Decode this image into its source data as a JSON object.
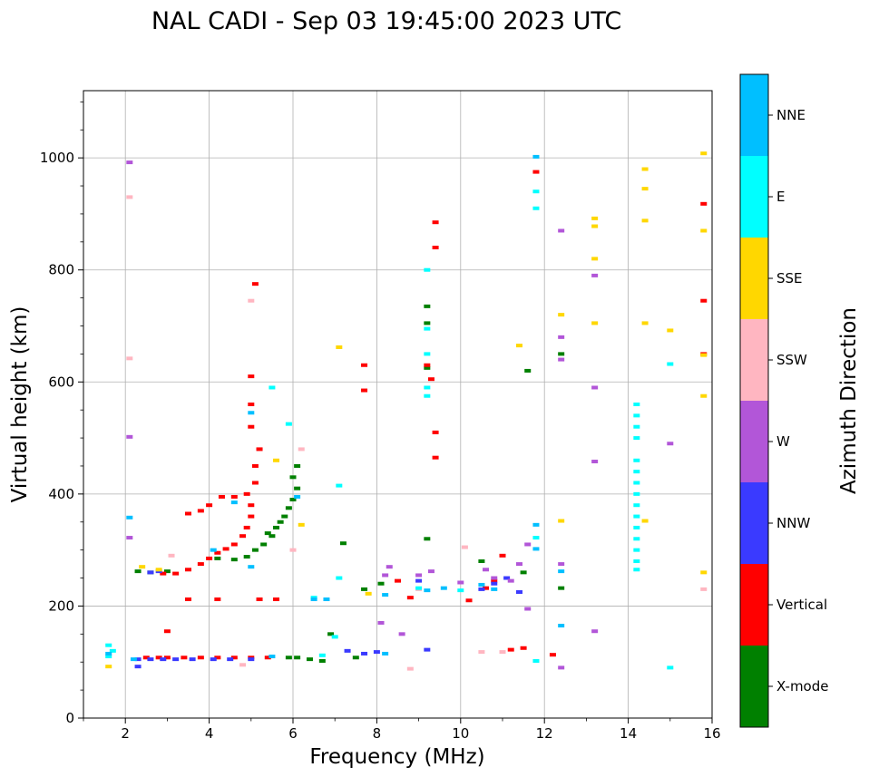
{
  "chart_data": {
    "type": "scatter",
    "title": "NAL CADI - Sep 03 19:45:00 2023 UTC",
    "xlabel": "Frequency (MHz)",
    "ylabel": "Virtual height (km)",
    "xlim": [
      1,
      16
    ],
    "ylim": [
      0,
      1120
    ],
    "xticks": [
      2,
      4,
      6,
      8,
      10,
      12,
      14,
      16
    ],
    "yticks": [
      0,
      200,
      400,
      600,
      800,
      1000
    ],
    "grid": true,
    "colorbar": {
      "label": "Azimuth Direction",
      "categories": [
        {
          "name": "X-mode",
          "color": "#008000"
        },
        {
          "name": "Vertical",
          "color": "#ff0000"
        },
        {
          "name": "NNW",
          "color": "#3a3aff"
        },
        {
          "name": "W",
          "color": "#b256d8"
        },
        {
          "name": "SSW",
          "color": "#ffb6c1"
        },
        {
          "name": "SSE",
          "color": "#ffd700"
        },
        {
          "name": "E",
          "color": "#00ffff"
        },
        {
          "name": "NNE",
          "color": "#00bfff"
        }
      ]
    },
    "series": [
      {
        "name": "X-mode",
        "points": [
          [
            2.3,
            262
          ],
          [
            2.6,
            260
          ],
          [
            3.0,
            262
          ],
          [
            4.2,
            285
          ],
          [
            4.6,
            283
          ],
          [
            4.9,
            288
          ],
          [
            5.1,
            300
          ],
          [
            5.3,
            310
          ],
          [
            5.5,
            325
          ],
          [
            5.6,
            340
          ],
          [
            5.8,
            360
          ],
          [
            5.9,
            375
          ],
          [
            6.0,
            390
          ],
          [
            6.1,
            410
          ],
          [
            6.0,
            430
          ],
          [
            6.1,
            450
          ],
          [
            6.4,
            105
          ],
          [
            6.7,
            102
          ],
          [
            7.5,
            108
          ],
          [
            6.1,
            108
          ],
          [
            5.9,
            108
          ],
          [
            6.9,
            150
          ],
          [
            7.7,
            230
          ],
          [
            8.1,
            240
          ],
          [
            10.5,
            280
          ],
          [
            11.5,
            260
          ],
          [
            12.4,
            650
          ],
          [
            12.4,
            232
          ],
          [
            9.2,
            735
          ],
          [
            9.2,
            705
          ],
          [
            9.2,
            625
          ],
          [
            9.2,
            320
          ],
          [
            11.6,
            620
          ],
          [
            5.4,
            330
          ],
          [
            5.7,
            350
          ],
          [
            7.2,
            312
          ]
        ]
      },
      {
        "name": "Vertical",
        "points": [
          [
            2.9,
            258
          ],
          [
            3.2,
            258
          ],
          [
            3.5,
            265
          ],
          [
            3.8,
            275
          ],
          [
            4.0,
            285
          ],
          [
            4.2,
            295
          ],
          [
            4.4,
            302
          ],
          [
            4.6,
            310
          ],
          [
            4.8,
            325
          ],
          [
            4.9,
            340
          ],
          [
            5.0,
            360
          ],
          [
            5.0,
            380
          ],
          [
            5.1,
            420
          ],
          [
            5.1,
            450
          ],
          [
            5.2,
            480
          ],
          [
            5.0,
            520
          ],
          [
            5.0,
            560
          ],
          [
            5.0,
            610
          ],
          [
            5.1,
            775
          ],
          [
            3.5,
            365
          ],
          [
            3.8,
            370
          ],
          [
            4.0,
            380
          ],
          [
            4.3,
            395
          ],
          [
            4.6,
            395
          ],
          [
            4.9,
            400
          ],
          [
            2.5,
            108
          ],
          [
            2.8,
            108
          ],
          [
            3.0,
            108
          ],
          [
            3.4,
            108
          ],
          [
            3.8,
            108
          ],
          [
            4.2,
            108
          ],
          [
            4.6,
            108
          ],
          [
            5.0,
            108
          ],
          [
            5.4,
            108
          ],
          [
            3.5,
            212
          ],
          [
            4.2,
            212
          ],
          [
            5.2,
            212
          ],
          [
            5.6,
            212
          ],
          [
            7.7,
            630
          ],
          [
            7.7,
            585
          ],
          [
            9.2,
            630
          ],
          [
            9.4,
            885
          ],
          [
            9.4,
            840
          ],
          [
            9.4,
            510
          ],
          [
            9.4,
            465
          ],
          [
            10.6,
            232
          ],
          [
            11.0,
            290
          ],
          [
            10.8,
            245
          ],
          [
            11.2,
            122
          ],
          [
            11.5,
            125
          ],
          [
            11.8,
            975
          ],
          [
            12.2,
            113
          ],
          [
            15.8,
            918
          ],
          [
            15.8,
            745
          ],
          [
            15.8,
            650
          ],
          [
            10.2,
            210
          ],
          [
            3.0,
            155
          ],
          [
            8.5,
            245
          ],
          [
            8.8,
            215
          ],
          [
            9.3,
            605
          ]
        ]
      },
      {
        "name": "NNW",
        "points": [
          [
            2.3,
            105
          ],
          [
            2.6,
            105
          ],
          [
            2.9,
            105
          ],
          [
            3.2,
            105
          ],
          [
            3.6,
            105
          ],
          [
            4.1,
            105
          ],
          [
            4.5,
            105
          ],
          [
            5.0,
            105
          ],
          [
            7.3,
            120
          ],
          [
            7.7,
            115
          ],
          [
            8.0,
            118
          ],
          [
            9.2,
            122
          ],
          [
            10.8,
            240
          ],
          [
            11.1,
            250
          ],
          [
            11.4,
            225
          ],
          [
            10.5,
            230
          ],
          [
            9.0,
            245
          ],
          [
            2.6,
            260
          ],
          [
            2.8,
            262
          ],
          [
            2.3,
            92
          ]
        ]
      },
      {
        "name": "W",
        "points": [
          [
            2.1,
            992
          ],
          [
            2.1,
            322
          ],
          [
            2.1,
            502
          ],
          [
            8.3,
            270
          ],
          [
            8.2,
            255
          ],
          [
            9.0,
            255
          ],
          [
            9.3,
            262
          ],
          [
            10.6,
            265
          ],
          [
            10.8,
            250
          ],
          [
            11.2,
            245
          ],
          [
            11.4,
            275
          ],
          [
            11.6,
            310
          ],
          [
            12.4,
            870
          ],
          [
            12.4,
            680
          ],
          [
            12.4,
            640
          ],
          [
            12.4,
            275
          ],
          [
            12.4,
            90
          ],
          [
            13.2,
            790
          ],
          [
            13.2,
            590
          ],
          [
            13.2,
            458
          ],
          [
            13.2,
            155
          ],
          [
            15.0,
            490
          ],
          [
            11.6,
            195
          ],
          [
            8.6,
            150
          ],
          [
            8.1,
            170
          ],
          [
            10.0,
            242
          ]
        ]
      },
      {
        "name": "SSW",
        "points": [
          [
            2.1,
            930
          ],
          [
            2.1,
            642
          ],
          [
            5.0,
            745
          ],
          [
            6.2,
            480
          ],
          [
            6.0,
            300
          ],
          [
            8.8,
            88
          ],
          [
            10.5,
            118
          ],
          [
            11.0,
            118
          ],
          [
            15.8,
            230
          ],
          [
            10.1,
            305
          ],
          [
            9.0,
            230
          ],
          [
            3.1,
            290
          ],
          [
            4.8,
            95
          ]
        ]
      },
      {
        "name": "SSE",
        "points": [
          [
            1.6,
            92
          ],
          [
            2.4,
            270
          ],
          [
            2.8,
            265
          ],
          [
            5.6,
            460
          ],
          [
            6.2,
            345
          ],
          [
            7.1,
            662
          ],
          [
            12.4,
            720
          ],
          [
            12.4,
            352
          ],
          [
            13.2,
            892
          ],
          [
            13.2,
            878
          ],
          [
            13.2,
            820
          ],
          [
            13.2,
            705
          ],
          [
            14.4,
            980
          ],
          [
            14.4,
            945
          ],
          [
            14.4,
            888
          ],
          [
            14.4,
            705
          ],
          [
            14.4,
            352
          ],
          [
            15.0,
            692
          ],
          [
            15.8,
            1008
          ],
          [
            15.8,
            870
          ],
          [
            15.8,
            648
          ],
          [
            15.8,
            575
          ],
          [
            15.8,
            260
          ],
          [
            11.4,
            665
          ],
          [
            7.8,
            222
          ]
        ]
      },
      {
        "name": "E",
        "points": [
          [
            1.6,
            130
          ],
          [
            1.6,
            110
          ],
          [
            1.7,
            120
          ],
          [
            5.5,
            590
          ],
          [
            5.9,
            525
          ],
          [
            6.7,
            112
          ],
          [
            7.1,
            415
          ],
          [
            7.1,
            250
          ],
          [
            9.2,
            800
          ],
          [
            9.2,
            695
          ],
          [
            9.2,
            650
          ],
          [
            9.2,
            590
          ],
          [
            9.2,
            575
          ],
          [
            11.8,
            910
          ],
          [
            11.8,
            940
          ],
          [
            11.8,
            322
          ],
          [
            11.8,
            102
          ],
          [
            14.2,
            560
          ],
          [
            14.2,
            540
          ],
          [
            14.2,
            520
          ],
          [
            14.2,
            500
          ],
          [
            14.2,
            460
          ],
          [
            14.2,
            440
          ],
          [
            14.2,
            420
          ],
          [
            14.2,
            400
          ],
          [
            14.2,
            380
          ],
          [
            14.2,
            360
          ],
          [
            14.2,
            340
          ],
          [
            14.2,
            320
          ],
          [
            14.2,
            300
          ],
          [
            14.2,
            280
          ],
          [
            14.2,
            265
          ],
          [
            15.0,
            632
          ],
          [
            15.0,
            90
          ],
          [
            6.5,
            215
          ],
          [
            7.0,
            145
          ],
          [
            9.0,
            232
          ],
          [
            10.0,
            228
          ]
        ]
      },
      {
        "name": "NNE",
        "points": [
          [
            1.6,
            115
          ],
          [
            2.1,
            358
          ],
          [
            2.2,
            105
          ],
          [
            4.1,
            300
          ],
          [
            5.0,
            545
          ],
          [
            5.0,
            270
          ],
          [
            6.1,
            395
          ],
          [
            6.5,
            212
          ],
          [
            6.8,
            212
          ],
          [
            8.2,
            220
          ],
          [
            8.2,
            115
          ],
          [
            9.2,
            228
          ],
          [
            9.6,
            232
          ],
          [
            10.5,
            238
          ],
          [
            10.8,
            230
          ],
          [
            11.8,
            1002
          ],
          [
            11.8,
            345
          ],
          [
            11.8,
            302
          ],
          [
            12.4,
            262
          ],
          [
            12.4,
            165
          ],
          [
            4.6,
            385
          ],
          [
            5.5,
            110
          ]
        ]
      }
    ]
  }
}
